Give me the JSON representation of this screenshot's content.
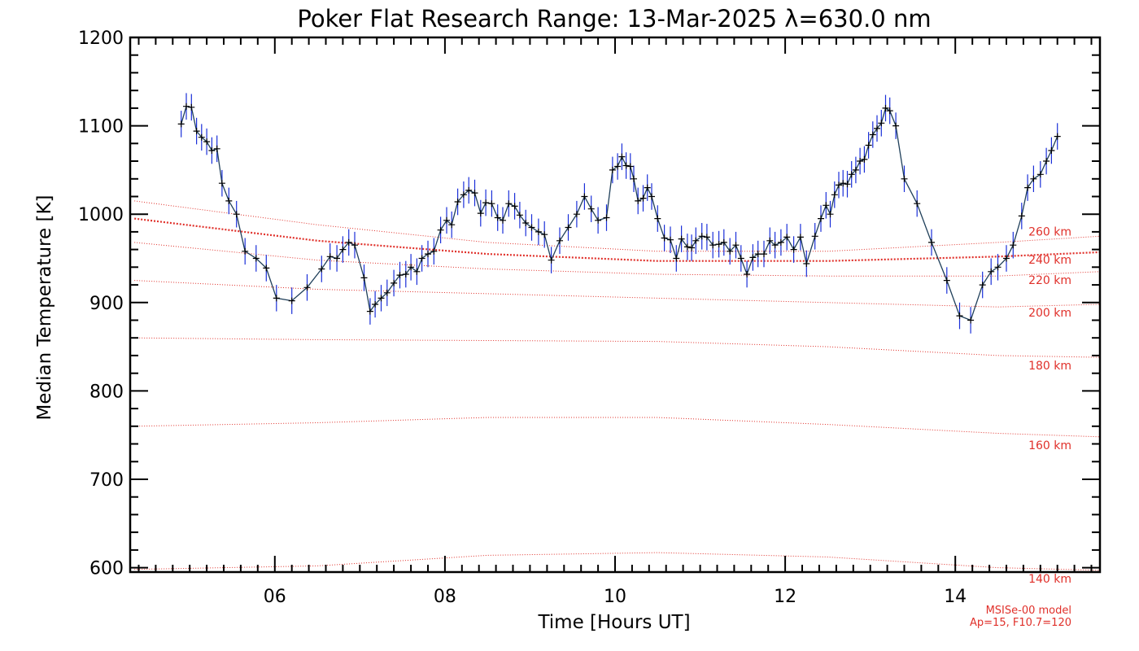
{
  "chart_data": {
    "type": "line",
    "title": "Poker Flat Research Range: 13-Mar-2025 λ=630.0 nm",
    "xlabel": "Time [Hours UT]",
    "ylabel": "Median Temperature [K]",
    "xlim": [
      4.3,
      15.7
    ],
    "ylim": [
      595,
      1200
    ],
    "x_ticks": [
      6,
      8,
      10,
      12,
      14
    ],
    "x_tick_labels": [
      "06",
      "08",
      "10",
      "12",
      "14"
    ],
    "y_ticks": [
      600,
      700,
      800,
      900,
      1000,
      1100,
      1200
    ],
    "y_tick_labels": [
      "600",
      "700",
      "800",
      "900",
      "1000",
      "1100",
      "1200"
    ],
    "colors": {
      "measurement_line": "#1a2fd8",
      "marker": "#000000",
      "model_lines": "#e0302a",
      "axes": "#000000"
    },
    "series": [
      {
        "points": [
          [
            4.9,
            1102
          ],
          [
            4.96,
            1122
          ],
          [
            5.02,
            1121
          ],
          [
            5.08,
            1094
          ],
          [
            5.14,
            1087
          ],
          [
            5.2,
            1082
          ],
          [
            5.26,
            1072
          ],
          [
            5.32,
            1074
          ],
          [
            5.38,
            1035
          ],
          [
            5.46,
            1015
          ],
          [
            5.55,
            1000
          ],
          [
            5.65,
            958
          ],
          [
            5.78,
            950
          ],
          [
            5.9,
            939
          ],
          [
            6.02,
            905
          ],
          [
            6.2,
            902
          ],
          [
            6.38,
            917
          ],
          [
            6.55,
            938
          ],
          [
            6.65,
            952
          ],
          [
            6.73,
            950
          ],
          [
            6.8,
            960
          ],
          [
            6.87,
            968
          ],
          [
            6.94,
            965
          ],
          [
            7.05,
            928
          ],
          [
            7.12,
            890
          ],
          [
            7.18,
            898
          ],
          [
            7.25,
            905
          ],
          [
            7.32,
            911
          ],
          [
            7.4,
            922
          ],
          [
            7.47,
            931
          ],
          [
            7.54,
            932
          ],
          [
            7.6,
            940
          ],
          [
            7.67,
            935
          ],
          [
            7.73,
            950
          ],
          [
            7.8,
            955
          ],
          [
            7.87,
            958
          ],
          [
            7.95,
            982
          ],
          [
            8.02,
            993
          ],
          [
            8.08,
            988
          ],
          [
            8.15,
            1014
          ],
          [
            8.22,
            1022
          ],
          [
            8.28,
            1027
          ],
          [
            8.35,
            1024
          ],
          [
            8.42,
            1001
          ],
          [
            8.48,
            1013
          ],
          [
            8.55,
            1012
          ],
          [
            8.62,
            996
          ],
          [
            8.68,
            993
          ],
          [
            8.75,
            1012
          ],
          [
            8.82,
            1009
          ],
          [
            8.88,
            999
          ],
          [
            8.95,
            990
          ],
          [
            9.02,
            985
          ],
          [
            9.1,
            980
          ],
          [
            9.17,
            977
          ],
          [
            9.25,
            948
          ],
          [
            9.35,
            970
          ],
          [
            9.45,
            985
          ],
          [
            9.55,
            1000
          ],
          [
            9.64,
            1020
          ],
          [
            9.72,
            1006
          ],
          [
            9.8,
            993
          ],
          [
            9.9,
            996
          ],
          [
            9.97,
            1050
          ],
          [
            10.03,
            1054
          ],
          [
            10.08,
            1065
          ],
          [
            10.13,
            1055
          ],
          [
            10.18,
            1054
          ],
          [
            10.22,
            1040
          ],
          [
            10.27,
            1015
          ],
          [
            10.33,
            1018
          ],
          [
            10.38,
            1030
          ],
          [
            10.43,
            1020
          ],
          [
            10.5,
            995
          ],
          [
            10.58,
            973
          ],
          [
            10.65,
            971
          ],
          [
            10.72,
            950
          ],
          [
            10.78,
            972
          ],
          [
            10.85,
            963
          ],
          [
            10.9,
            962
          ],
          [
            10.95,
            970
          ],
          [
            11.02,
            975
          ],
          [
            11.08,
            974
          ],
          [
            11.15,
            965
          ],
          [
            11.22,
            966
          ],
          [
            11.28,
            968
          ],
          [
            11.35,
            958
          ],
          [
            11.42,
            965
          ],
          [
            11.48,
            950
          ],
          [
            11.55,
            932
          ],
          [
            11.62,
            951
          ],
          [
            11.68,
            955
          ],
          [
            11.75,
            955
          ],
          [
            11.82,
            970
          ],
          [
            11.88,
            965
          ],
          [
            11.95,
            968
          ],
          [
            12.02,
            974
          ],
          [
            12.1,
            960
          ],
          [
            12.18,
            974
          ],
          [
            12.25,
            944
          ],
          [
            12.35,
            975
          ],
          [
            12.42,
            995
          ],
          [
            12.48,
            1010
          ],
          [
            12.53,
            1000
          ],
          [
            12.58,
            1022
          ],
          [
            12.63,
            1033
          ],
          [
            12.68,
            1035
          ],
          [
            12.73,
            1034
          ],
          [
            12.78,
            1045
          ],
          [
            12.83,
            1050
          ],
          [
            12.88,
            1060
          ],
          [
            12.93,
            1062
          ],
          [
            12.98,
            1078
          ],
          [
            13.03,
            1090
          ],
          [
            13.08,
            1097
          ],
          [
            13.13,
            1103
          ],
          [
            13.18,
            1120
          ],
          [
            13.23,
            1117
          ],
          [
            13.3,
            1100
          ],
          [
            13.4,
            1040
          ],
          [
            13.55,
            1012
          ],
          [
            13.72,
            968
          ],
          [
            13.9,
            925
          ],
          [
            14.05,
            885
          ],
          [
            14.18,
            880
          ],
          [
            14.32,
            920
          ],
          [
            14.42,
            935
          ],
          [
            14.5,
            940
          ],
          [
            14.6,
            950
          ],
          [
            14.68,
            965
          ],
          [
            14.78,
            998
          ],
          [
            14.85,
            1030
          ],
          [
            14.92,
            1040
          ],
          [
            15.0,
            1045
          ],
          [
            15.07,
            1060
          ],
          [
            15.13,
            1072
          ],
          [
            15.2,
            1088
          ]
        ],
        "error_bar_k": 15
      }
    ],
    "model_lines": [
      {
        "label": "140 km",
        "values": [
          [
            4.35,
            598
          ],
          [
            6.5,
            602
          ],
          [
            8.5,
            614
          ],
          [
            10.5,
            617
          ],
          [
            12.5,
            612
          ],
          [
            14.5,
            600
          ],
          [
            15.7,
            597
          ]
        ]
      },
      {
        "label": "160 km",
        "values": [
          [
            4.35,
            760
          ],
          [
            6.5,
            764
          ],
          [
            8.5,
            770
          ],
          [
            10.5,
            770
          ],
          [
            12.5,
            762
          ],
          [
            14.5,
            752
          ],
          [
            15.7,
            748
          ]
        ]
      },
      {
        "label": "180 km",
        "values": [
          [
            4.35,
            860
          ],
          [
            6.5,
            858
          ],
          [
            8.5,
            857
          ],
          [
            10.5,
            856
          ],
          [
            12.5,
            850
          ],
          [
            14.5,
            840
          ],
          [
            15.7,
            838
          ]
        ]
      },
      {
        "label": "200 km",
        "values": [
          [
            4.35,
            925
          ],
          [
            6.5,
            915
          ],
          [
            8.5,
            910
          ],
          [
            10.5,
            905
          ],
          [
            12.5,
            900
          ],
          [
            14.5,
            895
          ],
          [
            15.7,
            898
          ]
        ]
      },
      {
        "label": "220 km",
        "values": [
          [
            4.35,
            968
          ],
          [
            6.5,
            948
          ],
          [
            8.5,
            938
          ],
          [
            10.5,
            932
          ],
          [
            12.5,
            930
          ],
          [
            14.5,
            930
          ],
          [
            15.7,
            935
          ]
        ]
      },
      {
        "label": "240 km",
        "values": [
          [
            4.35,
            995
          ],
          [
            6.5,
            970
          ],
          [
            8.5,
            955
          ],
          [
            10.5,
            947
          ],
          [
            12.5,
            947
          ],
          [
            14.5,
            952
          ],
          [
            15.7,
            957
          ]
        ]
      },
      {
        "label": "260 km",
        "values": [
          [
            4.35,
            1015
          ],
          [
            6.5,
            988
          ],
          [
            8.5,
            968
          ],
          [
            10.5,
            958
          ],
          [
            12.5,
            958
          ],
          [
            14.5,
            968
          ],
          [
            15.7,
            975
          ]
        ]
      }
    ],
    "model_note": [
      "MSISe-00 model",
      "Ap=15, F10.7=120"
    ]
  }
}
